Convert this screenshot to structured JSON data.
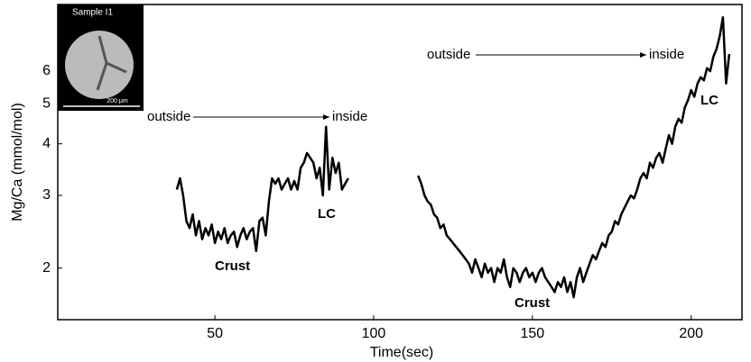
{
  "chart_data": {
    "type": "line",
    "log_y": true,
    "xlabel": "Time(sec)",
    "ylabel": "Mg/Ca (mmol/mol)",
    "xlim": [
      0.5,
      216
    ],
    "ylim": [
      1.5,
      8.7
    ],
    "xticks": [
      50,
      100,
      150,
      200
    ],
    "yticks": [
      2,
      3,
      4,
      5,
      6
    ],
    "x": [
      38,
      39,
      40,
      41,
      42,
      43,
      44,
      45,
      46,
      47,
      48,
      49,
      50,
      51,
      52,
      53,
      54,
      55,
      56,
      57,
      58,
      59,
      60,
      61,
      62,
      63,
      64,
      65,
      66,
      67,
      68,
      69,
      70,
      71,
      72,
      73,
      74,
      75,
      76,
      77,
      78,
      79,
      80,
      81,
      82,
      83,
      84,
      85,
      86,
      87,
      88,
      89,
      90,
      91,
      92,
      103,
      114,
      115,
      116,
      117,
      118,
      119,
      120,
      121,
      122,
      123,
      124,
      125,
      126,
      127,
      128,
      129,
      130,
      131,
      132,
      133,
      134,
      135,
      136,
      137,
      138,
      139,
      140,
      141,
      142,
      143,
      144,
      145,
      146,
      147,
      148,
      149,
      150,
      151,
      152,
      153,
      154,
      155,
      156,
      157,
      158,
      159,
      160,
      161,
      162,
      163,
      164,
      165,
      166,
      167,
      168,
      169,
      170,
      171,
      172,
      173,
      174,
      175,
      176,
      177,
      178,
      179,
      180,
      181,
      182,
      183,
      184,
      185,
      186,
      187,
      188,
      189,
      190,
      191,
      192,
      193,
      194,
      195,
      196,
      197,
      198,
      199,
      200,
      201,
      202,
      203,
      204,
      205,
      206,
      207,
      208,
      209,
      210,
      211,
      212
    ],
    "series": [
      {
        "color": "#000000",
        "values": [
          3.1,
          3.3,
          3.0,
          2.6,
          2.5,
          2.7,
          2.4,
          2.6,
          2.35,
          2.5,
          2.4,
          2.55,
          2.3,
          2.45,
          2.35,
          2.5,
          2.3,
          2.4,
          2.45,
          2.25,
          2.4,
          2.5,
          2.35,
          2.45,
          2.5,
          2.2,
          2.6,
          2.65,
          2.4,
          2.9,
          3.3,
          3.2,
          3.3,
          3.1,
          3.2,
          3.3,
          3.1,
          3.25,
          3.1,
          3.5,
          3.6,
          3.8,
          3.7,
          3.6,
          3.3,
          3.5,
          3.0,
          4.4,
          3.1,
          3.7,
          3.4,
          3.6,
          3.1,
          3.2,
          3.3,
          null,
          3.35,
          3.2,
          3.0,
          2.9,
          2.85,
          2.7,
          2.65,
          2.5,
          2.55,
          2.4,
          2.35,
          2.3,
          2.25,
          2.2,
          2.15,
          2.1,
          2.05,
          1.95,
          2.1,
          2.0,
          1.9,
          2.05,
          1.95,
          2.0,
          1.85,
          2.0,
          1.95,
          2.1,
          1.9,
          1.8,
          2.0,
          1.95,
          1.85,
          1.95,
          2.0,
          1.9,
          1.95,
          1.85,
          1.95,
          2.0,
          1.9,
          1.85,
          1.8,
          1.75,
          1.85,
          1.8,
          1.9,
          1.75,
          1.85,
          1.7,
          1.9,
          2.0,
          1.85,
          1.95,
          2.05,
          2.15,
          2.1,
          2.2,
          2.3,
          2.25,
          2.4,
          2.45,
          2.6,
          2.55,
          2.7,
          2.8,
          2.9,
          3.0,
          2.95,
          3.1,
          3.3,
          3.4,
          3.3,
          3.6,
          3.5,
          3.7,
          3.8,
          3.6,
          3.9,
          4.2,
          4.0,
          4.4,
          4.6,
          4.5,
          4.9,
          5.1,
          5.4,
          5.2,
          5.6,
          5.8,
          5.7,
          6.1,
          6.0,
          6.5,
          6.8,
          7.3,
          8.1,
          5.6,
          6.6
        ]
      }
    ],
    "annotations": [
      "outside",
      "inside",
      "Crust",
      "LC",
      "outside",
      "inside",
      "Crust",
      "LC"
    ],
    "inset": {
      "title": "Sample I1",
      "scale": "200 µm"
    }
  }
}
